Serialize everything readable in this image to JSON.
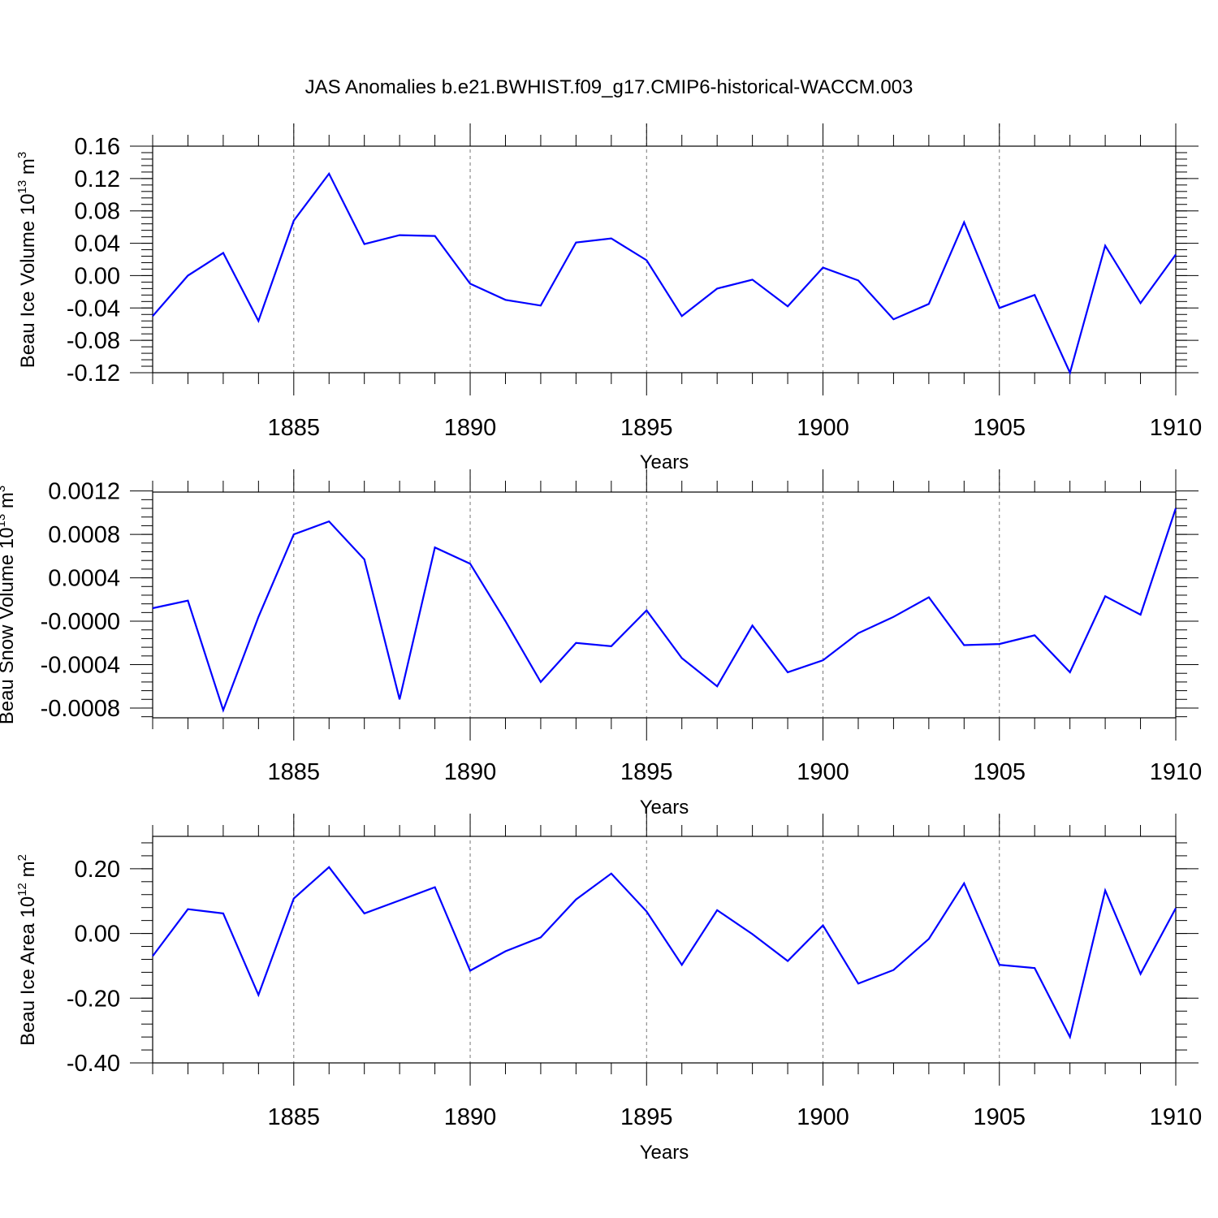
{
  "title": "JAS Anomalies b.e21.BWHIST.f09_g17.CMIP6-historical-WACCM.003",
  "colors": {
    "line": "#0000ff",
    "grid": "#777777"
  },
  "chart_data": [
    {
      "type": "line",
      "ylabel_base": "Beau Ice Volume 10",
      "ylabel_exp": "13",
      "ylabel_unit": " m",
      "ylabel_unit_exp": "3",
      "xlabel": "Years",
      "xlim": [
        1881,
        1910
      ],
      "ylim": [
        -0.12,
        0.16
      ],
      "x_ticks": [
        1885,
        1890,
        1895,
        1900,
        1905,
        1910
      ],
      "y_ticks": [
        -0.12,
        -0.08,
        -0.04,
        0.0,
        0.04,
        0.08,
        0.12,
        0.16
      ],
      "y_tick_labels": [
        "-0.12",
        "-0.08",
        "-0.04",
        "0.00",
        "0.04",
        "0.08",
        "0.12",
        "0.16"
      ],
      "y_minor_step": 0.008,
      "grid": "vertical dashed",
      "x": [
        1881,
        1882,
        1883,
        1884,
        1885,
        1886,
        1887,
        1888,
        1889,
        1890,
        1891,
        1892,
        1893,
        1894,
        1895,
        1896,
        1897,
        1898,
        1899,
        1900,
        1901,
        1902,
        1903,
        1904,
        1905,
        1906,
        1907,
        1908,
        1909,
        1910
      ],
      "values": [
        -0.05,
        0.0,
        0.028,
        -0.056,
        0.068,
        0.126,
        0.039,
        0.05,
        0.049,
        -0.01,
        -0.03,
        -0.037,
        0.041,
        0.046,
        0.019,
        -0.05,
        -0.016,
        -0.005,
        -0.038,
        0.01,
        -0.006,
        -0.054,
        -0.035,
        0.066,
        -0.04,
        -0.024,
        -0.12,
        0.037,
        -0.034,
        0.026
      ]
    },
    {
      "type": "line",
      "ylabel_base": "Beau Snow Volume 10",
      "ylabel_exp": "13",
      "ylabel_unit": " m",
      "ylabel_unit_exp": "3",
      "xlabel": "Years",
      "xlim": [
        1881,
        1910
      ],
      "ylim": [
        -0.00089,
        0.00119
      ],
      "x_ticks": [
        1885,
        1890,
        1895,
        1900,
        1905,
        1910
      ],
      "y_ticks": [
        -0.0008,
        -0.0004,
        0.0,
        0.0004,
        0.0008,
        0.0012
      ],
      "y_tick_labels": [
        "-0.0008",
        "-0.0004",
        "-0.0000",
        "0.0004",
        "0.0008",
        "0.0012"
      ],
      "y_minor_step": 8e-05,
      "grid": "vertical dashed",
      "x": [
        1881,
        1882,
        1883,
        1884,
        1885,
        1886,
        1887,
        1888,
        1889,
        1890,
        1891,
        1892,
        1893,
        1894,
        1895,
        1896,
        1897,
        1898,
        1899,
        1900,
        1901,
        1902,
        1903,
        1904,
        1905,
        1906,
        1907,
        1908,
        1909,
        1910
      ],
      "values": [
        0.00012,
        0.00019,
        -0.00082,
        4e-05,
        0.0008,
        0.00092,
        0.00057,
        -0.00072,
        0.00068,
        0.00053,
        0.0,
        -0.00056,
        -0.0002,
        -0.00023,
        0.0001,
        -0.00034,
        -0.0006,
        -4e-05,
        -0.00047,
        -0.00036,
        -0.00011,
        4e-05,
        0.00022,
        -0.00022,
        -0.00021,
        -0.00013,
        -0.00047,
        0.00023,
        6e-05,
        0.00104
      ]
    },
    {
      "type": "line",
      "ylabel_base": "Beau Ice Area 10",
      "ylabel_exp": "12",
      "ylabel_unit": " m",
      "ylabel_unit_exp": "2",
      "xlabel": "Years",
      "xlim": [
        1881,
        1910
      ],
      "ylim": [
        -0.4,
        0.3
      ],
      "x_ticks": [
        1885,
        1890,
        1895,
        1900,
        1905,
        1910
      ],
      "y_ticks": [
        -0.4,
        -0.2,
        0.0,
        0.2
      ],
      "y_tick_labels": [
        "-0.40",
        "-0.20",
        "0.00",
        "0.20"
      ],
      "y_minor_step": 0.04,
      "grid": "vertical dashed",
      "x": [
        1881,
        1882,
        1883,
        1884,
        1885,
        1886,
        1887,
        1888,
        1889,
        1890,
        1891,
        1892,
        1893,
        1894,
        1895,
        1896,
        1897,
        1898,
        1899,
        1900,
        1901,
        1902,
        1903,
        1904,
        1905,
        1906,
        1907,
        1908,
        1909,
        1910
      ],
      "values": [
        -0.07,
        0.075,
        0.062,
        -0.19,
        0.108,
        0.205,
        0.062,
        0.102,
        0.143,
        -0.115,
        -0.055,
        -0.012,
        0.105,
        0.185,
        0.068,
        -0.097,
        0.072,
        -0.002,
        -0.085,
        0.025,
        -0.155,
        -0.113,
        -0.017,
        0.155,
        -0.097,
        -0.107,
        -0.32,
        0.133,
        -0.125,
        0.078
      ]
    }
  ]
}
